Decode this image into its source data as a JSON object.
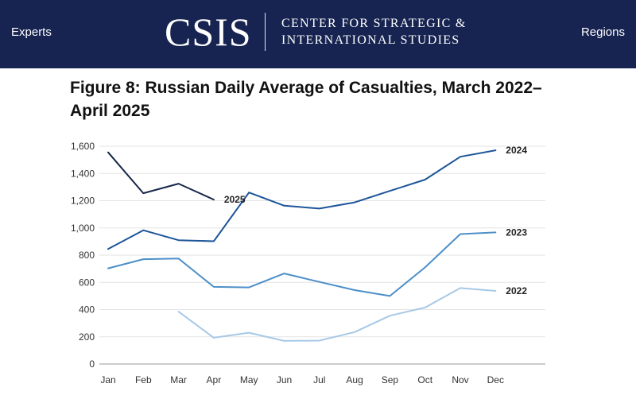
{
  "header": {
    "nav_left": "Experts",
    "nav_right": "Regions",
    "logo_mark": "CSIS",
    "logo_line1": "CENTER FOR STRATEGIC &",
    "logo_line2": "INTERNATIONAL STUDIES",
    "background": "#172451"
  },
  "chart_data": {
    "type": "line",
    "title": "Figure 8: Russian Daily Average of Casualties, March 2022–April 2025",
    "xlabel": "",
    "ylabel": "",
    "categories": [
      "Jan",
      "Feb",
      "Mar",
      "Apr",
      "May",
      "Jun",
      "Jul",
      "Aug",
      "Sep",
      "Oct",
      "Nov",
      "Dec"
    ],
    "ylim": [
      0,
      1600
    ],
    "yticks": [
      "0",
      "200",
      "400",
      "600",
      "800",
      "1,000",
      "1,200",
      "1,400",
      "1,600"
    ],
    "grid": true,
    "series": [
      {
        "name": "2022",
        "color": "#a7c9e6",
        "values": [
          null,
          null,
          385,
          193,
          230,
          170,
          172,
          235,
          355,
          415,
          558,
          537
        ]
      },
      {
        "name": "2023",
        "color": "#4d8fc8",
        "values": [
          703,
          770,
          775,
          567,
          563,
          665,
          603,
          543,
          500,
          710,
          955,
          967
        ]
      },
      {
        "name": "2024",
        "color": "#1d5598",
        "values": [
          845,
          983,
          910,
          902,
          1260,
          1163,
          1142,
          1188,
          1272,
          1355,
          1523,
          1570
        ]
      },
      {
        "name": "2025",
        "color": "#152748",
        "values": [
          1555,
          1255,
          1325,
          1208,
          null,
          null,
          null,
          null,
          null,
          null,
          null,
          null
        ]
      }
    ]
  }
}
